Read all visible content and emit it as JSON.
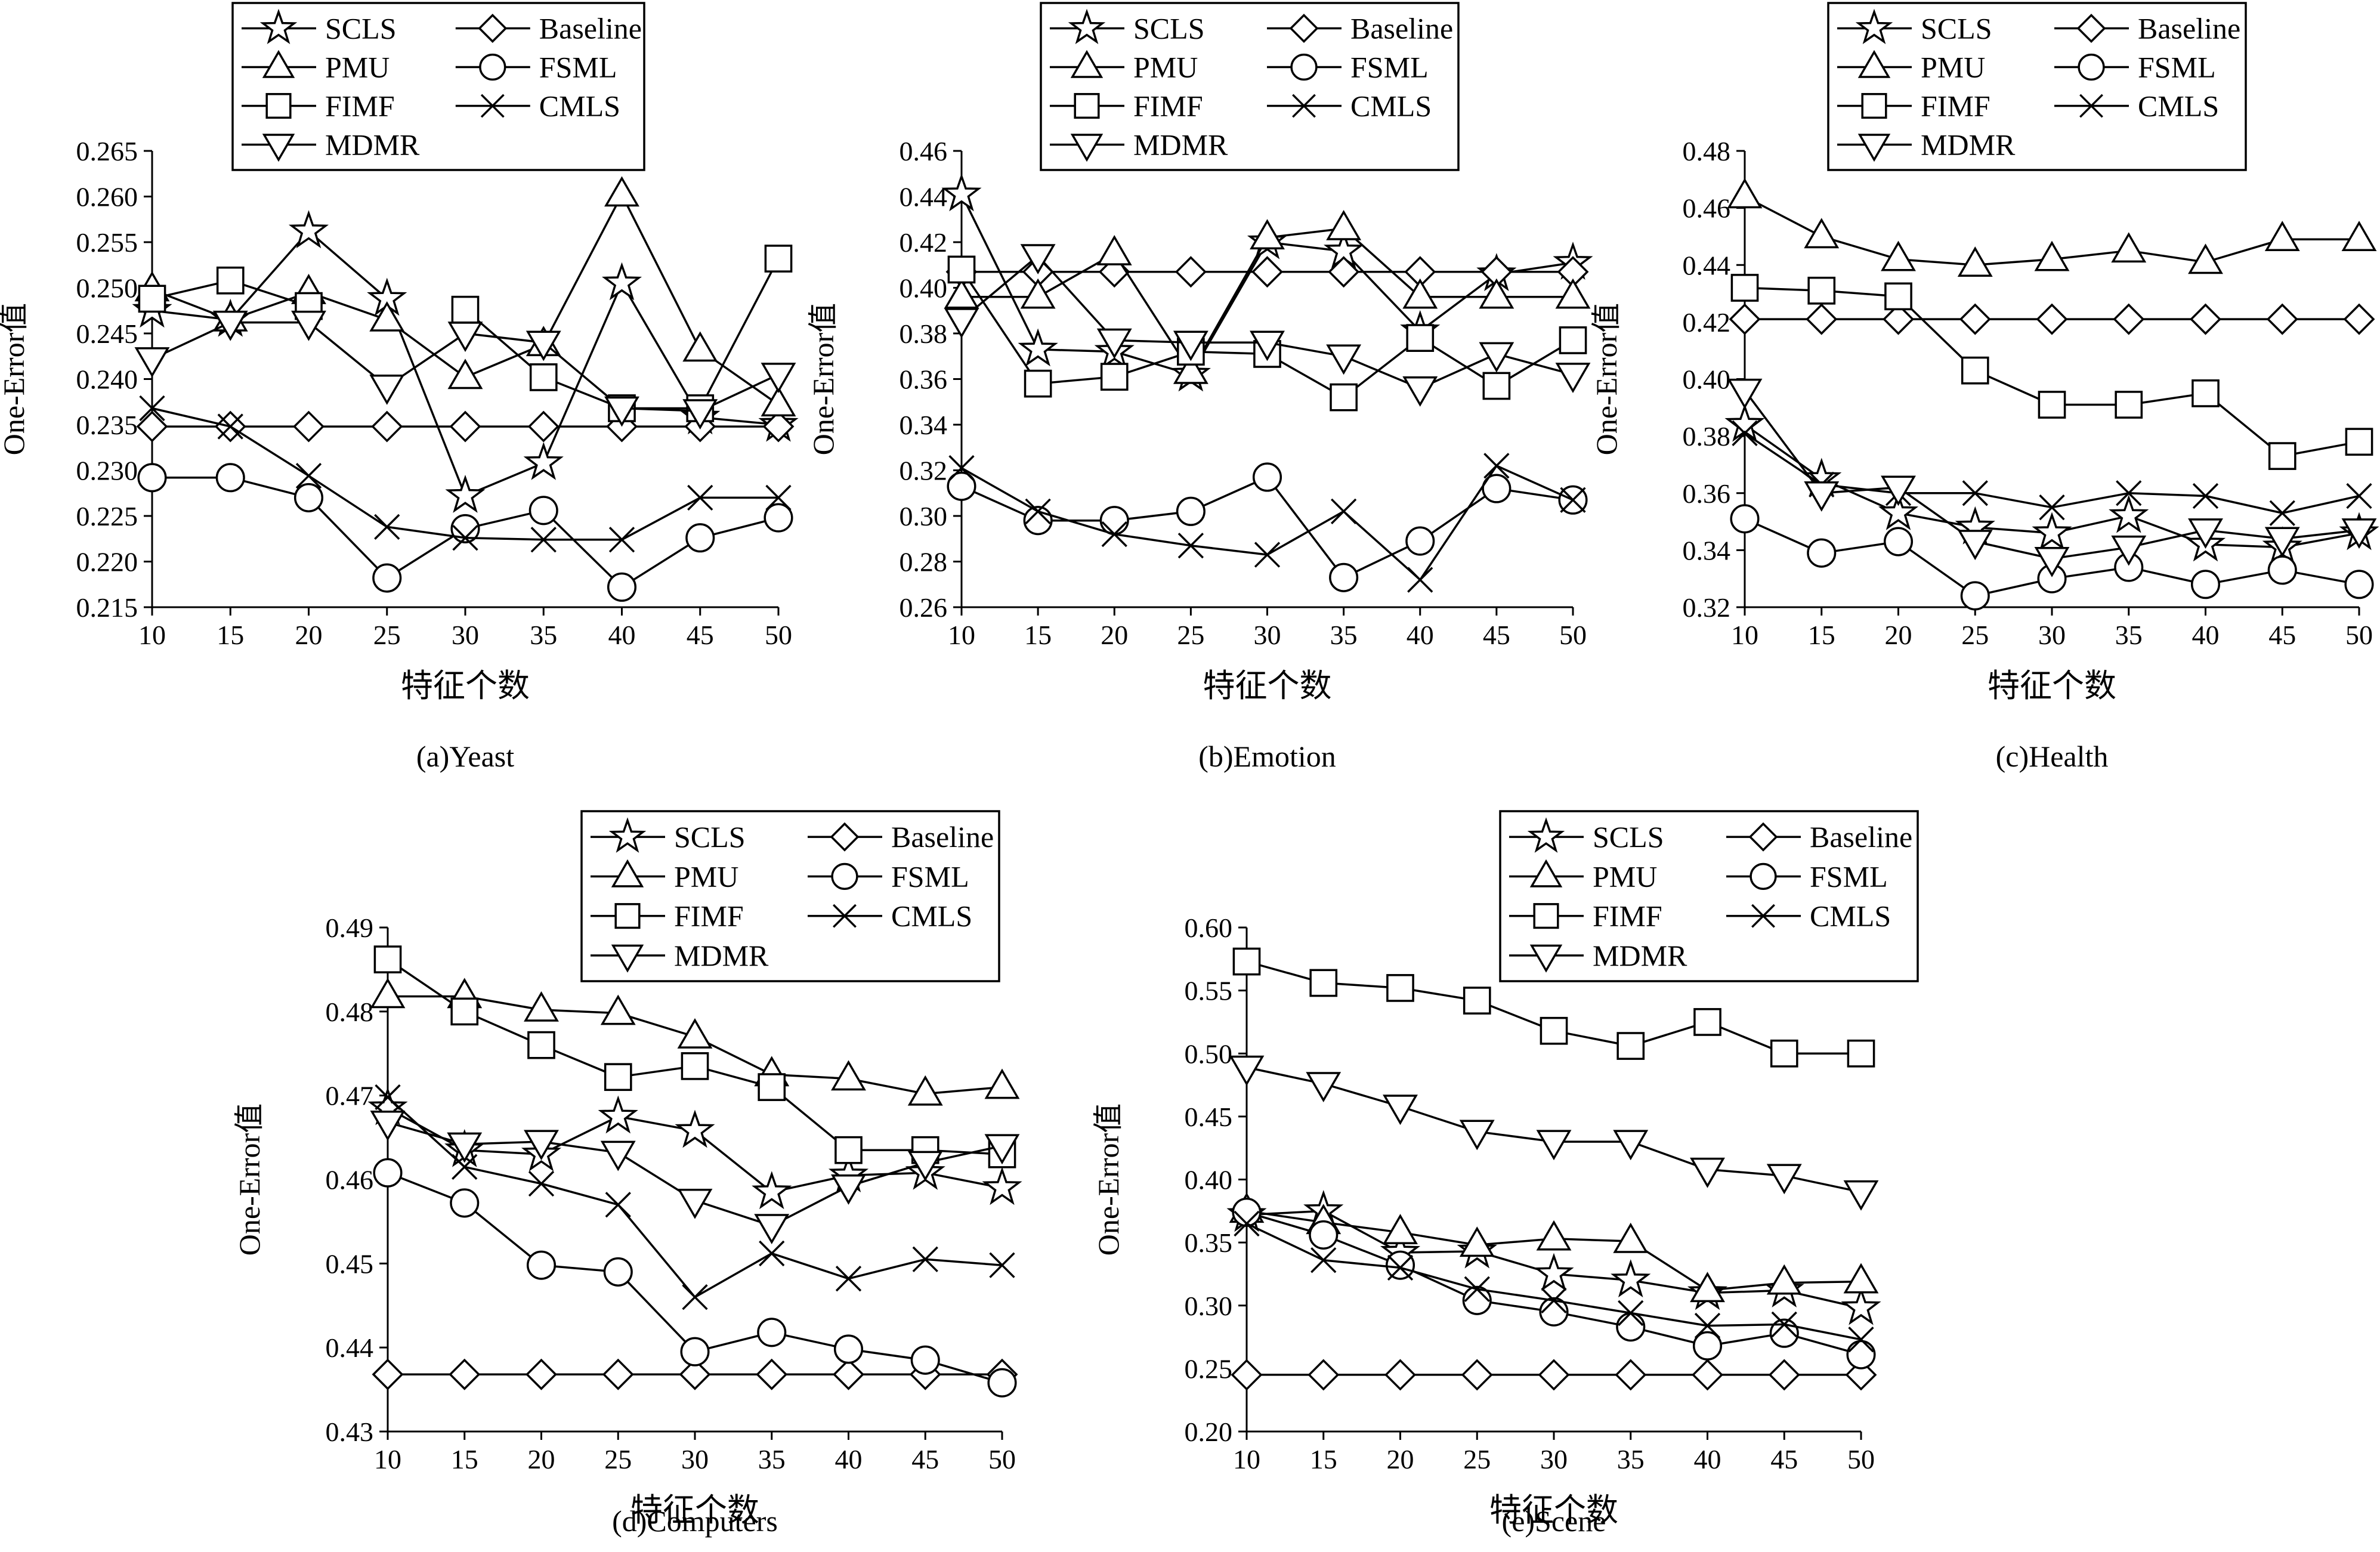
{
  "styles": {
    "line_color": "#000000",
    "background": "#ffffff"
  },
  "legend_entries": [
    {
      "name": "SCLS",
      "marker": "star"
    },
    {
      "name": "Baseline",
      "marker": "diamond"
    },
    {
      "name": "PMU",
      "marker": "triangle-up"
    },
    {
      "name": "FSML",
      "marker": "circle"
    },
    {
      "name": "FIMF",
      "marker": "square"
    },
    {
      "name": "CMLS",
      "marker": "x"
    },
    {
      "name": "MDMR",
      "marker": "triangle-down"
    }
  ],
  "chart_data": [
    {
      "type": "line",
      "caption": "(a)Yeast",
      "xlabel": "特征个数",
      "ylabel": "One-Error值",
      "x": [
        10,
        15,
        20,
        25,
        30,
        35,
        40,
        45,
        50
      ],
      "ylim": [
        0.215,
        0.265
      ],
      "yticks": [
        "0.215",
        "0.220",
        "0.225",
        "0.230",
        "0.235",
        "0.240",
        "0.245",
        "0.250",
        "0.255",
        "0.260",
        "0.265"
      ],
      "series": [
        {
          "name": "SCLS",
          "values": [
            0.2475,
            0.2465,
            0.2562,
            0.2488,
            0.2272,
            0.2308,
            0.2505,
            0.2358,
            0.235
          ]
        },
        {
          "name": "Baseline",
          "values": [
            0.2348,
            0.2348,
            0.2348,
            0.2348,
            0.2348,
            0.2348,
            0.2348,
            0.2348,
            0.2348
          ]
        },
        {
          "name": "PMU",
          "values": [
            0.2498,
            0.2465,
            0.2495,
            0.2465,
            0.2402,
            0.2438,
            0.2602,
            0.2432,
            0.2372
          ]
        },
        {
          "name": "FSML",
          "values": [
            0.2292,
            0.2292,
            0.227,
            0.2182,
            0.2236,
            0.2256,
            0.2172,
            0.2226,
            0.2248
          ]
        },
        {
          "name": "FIMF",
          "values": [
            0.2488,
            0.2508,
            0.248,
            null,
            0.2476,
            0.2402,
            0.2368,
            0.2368,
            0.2532
          ]
        },
        {
          "name": "CMLS",
          "values": [
            0.2368,
            0.2348,
            0.2294,
            0.2238,
            0.2226,
            0.2224,
            0.2224,
            0.227,
            0.227
          ]
        },
        {
          "name": "MDMR",
          "values": [
            0.2422,
            0.2462,
            0.2462,
            0.2392,
            0.245,
            0.244,
            0.2368,
            0.2365,
            0.2405
          ]
        }
      ]
    },
    {
      "type": "line",
      "caption": "(b)Emotion",
      "xlabel": "特征个数",
      "ylabel": "One-Error值",
      "x": [
        10,
        15,
        20,
        25,
        30,
        35,
        40,
        45,
        50
      ],
      "ylim": [
        0.26,
        0.46
      ],
      "yticks": [
        "0.26",
        "0.28",
        "0.30",
        "0.32",
        "0.34",
        "0.36",
        "0.38",
        "0.40",
        "0.42",
        "0.44",
        "0.46"
      ],
      "series": [
        {
          "name": "SCLS",
          "values": [
            0.441,
            0.373,
            0.372,
            0.362,
            0.42,
            0.416,
            0.381,
            0.406,
            0.411
          ]
        },
        {
          "name": "Baseline",
          "values": [
            0.407,
            0.407,
            0.407,
            0.407,
            0.407,
            0.407,
            0.407,
            0.407,
            0.407
          ]
        },
        {
          "name": "PMU",
          "values": [
            0.396,
            0.396,
            0.415,
            0.363,
            0.422,
            0.426,
            0.396,
            0.396,
            0.396
          ]
        },
        {
          "name": "FSML",
          "values": [
            0.313,
            0.298,
            0.298,
            0.302,
            0.317,
            0.273,
            0.289,
            0.312,
            0.307
          ]
        },
        {
          "name": "FIMF",
          "values": [
            0.408,
            0.358,
            0.361,
            0.372,
            0.371,
            0.352,
            0.378,
            0.357,
            0.377
          ]
        },
        {
          "name": "CMLS",
          "values": [
            0.321,
            0.302,
            0.292,
            0.287,
            0.283,
            0.302,
            0.272,
            0.322,
            0.307
          ]
        },
        {
          "name": "MDMR",
          "values": [
            0.386,
            0.414,
            0.377,
            0.376,
            0.376,
            0.37,
            0.356,
            0.371,
            0.362
          ]
        }
      ]
    },
    {
      "type": "line",
      "caption": "(c)Health",
      "xlabel": "特征个数",
      "ylabel": "One-Error值",
      "x": [
        10,
        15,
        20,
        25,
        30,
        35,
        40,
        45,
        50
      ],
      "ylim": [
        0.32,
        0.48
      ],
      "yticks": [
        "0.32",
        "0.34",
        "0.36",
        "0.38",
        "0.40",
        "0.42",
        "0.44",
        "0.46",
        "0.48"
      ],
      "series": [
        {
          "name": "SCLS",
          "values": [
            0.384,
            0.365,
            0.353,
            0.348,
            0.346,
            0.352,
            0.342,
            0.341,
            0.346
          ]
        },
        {
          "name": "Baseline",
          "values": [
            0.421,
            0.421,
            0.421,
            0.421,
            0.421,
            0.421,
            0.421,
            0.421,
            0.421
          ]
        },
        {
          "name": "PMU",
          "values": [
            0.464,
            0.45,
            0.442,
            0.44,
            0.442,
            0.445,
            0.441,
            0.449,
            0.449
          ]
        },
        {
          "name": "FSML",
          "values": [
            0.351,
            0.339,
            0.343,
            0.324,
            0.33,
            0.334,
            0.328,
            0.333,
            0.328
          ]
        },
        {
          "name": "FIMF",
          "values": [
            0.432,
            0.431,
            0.429,
            0.403,
            0.391,
            0.391,
            0.395,
            0.373,
            0.378
          ]
        },
        {
          "name": "CMLS",
          "values": [
            0.381,
            0.363,
            0.36,
            0.36,
            0.355,
            0.36,
            0.359,
            0.353,
            0.359
          ]
        },
        {
          "name": "MDMR",
          "values": [
            0.396,
            0.36,
            0.362,
            0.343,
            0.337,
            0.341,
            0.347,
            0.344,
            0.347
          ]
        }
      ]
    },
    {
      "type": "line",
      "caption": "(d)Computers",
      "xlabel": "特征个数",
      "ylabel": "One-Error值",
      "x": [
        10,
        15,
        20,
        25,
        30,
        35,
        40,
        45,
        50
      ],
      "ylim": [
        0.43,
        0.49
      ],
      "yticks": [
        "0.43",
        "0.44",
        "0.45",
        "0.46",
        "0.47",
        "0.48",
        "0.49"
      ],
      "series": [
        {
          "name": "SCLS",
          "values": [
            0.4685,
            0.4635,
            0.463,
            0.4675,
            0.4658,
            0.4585,
            0.4605,
            0.4608,
            0.459
          ]
        },
        {
          "name": "Baseline",
          "values": [
            0.4368,
            0.4368,
            0.4368,
            0.4368,
            0.4368,
            0.4368,
            0.4368,
            0.4368,
            0.4368
          ]
        },
        {
          "name": "PMU",
          "values": [
            0.4818,
            0.4818,
            0.4802,
            0.4798,
            0.477,
            0.4725,
            0.472,
            0.4702,
            0.471
          ]
        },
        {
          "name": "FSML",
          "values": [
            0.4608,
            0.4572,
            0.4498,
            0.449,
            0.4395,
            0.4418,
            0.4398,
            0.4385,
            0.4358
          ]
        },
        {
          "name": "FIMF",
          "values": [
            0.4862,
            0.48,
            0.476,
            0.4722,
            0.4735,
            0.471,
            0.4635,
            0.4635,
            0.463
          ]
        },
        {
          "name": "CMLS",
          "values": [
            0.4698,
            0.4615,
            0.4595,
            0.457,
            0.446,
            0.4512,
            0.4482,
            0.4505,
            0.4498
          ]
        },
        {
          "name": "MDMR",
          "values": [
            0.4668,
            0.4642,
            0.4645,
            0.4632,
            0.4575,
            0.4545,
            0.4592,
            0.462,
            0.464
          ]
        }
      ]
    },
    {
      "type": "line",
      "caption": "(e)Scene",
      "xlabel": "特征个数",
      "ylabel": "One-Error值",
      "x": [
        10,
        15,
        20,
        25,
        30,
        35,
        40,
        45,
        50
      ],
      "ylim": [
        0.2,
        0.6
      ],
      "yticks": [
        "0.20",
        "0.25",
        "0.30",
        "0.35",
        "0.40",
        "0.45",
        "0.50",
        "0.55",
        "0.60"
      ],
      "series": [
        {
          "name": "SCLS",
          "values": [
            0.372,
            0.375,
            0.342,
            0.343,
            0.325,
            0.32,
            0.31,
            0.312,
            0.298
          ]
        },
        {
          "name": "Baseline",
          "values": [
            0.245,
            0.245,
            0.245,
            0.245,
            0.245,
            0.245,
            0.245,
            0.245,
            0.245
          ]
        },
        {
          "name": "PMU",
          "values": [
            0.375,
            0.366,
            0.358,
            0.348,
            0.353,
            0.351,
            0.312,
            0.318,
            0.319
          ]
        },
        {
          "name": "FSML",
          "values": [
            0.374,
            0.356,
            0.332,
            0.304,
            0.295,
            0.283,
            0.268,
            0.278,
            0.261
          ]
        },
        {
          "name": "FIMF",
          "values": [
            0.573,
            0.556,
            0.552,
            0.542,
            0.518,
            0.506,
            0.525,
            0.5,
            0.5
          ]
        },
        {
          "name": "CMLS",
          "values": [
            0.365,
            0.336,
            0.33,
            0.313,
            0.304,
            0.294,
            0.284,
            0.285,
            0.273
          ]
        },
        {
          "name": "MDMR",
          "values": [
            0.489,
            0.476,
            0.458,
            0.438,
            0.43,
            0.43,
            0.408,
            0.403,
            0.39
          ]
        }
      ]
    }
  ]
}
